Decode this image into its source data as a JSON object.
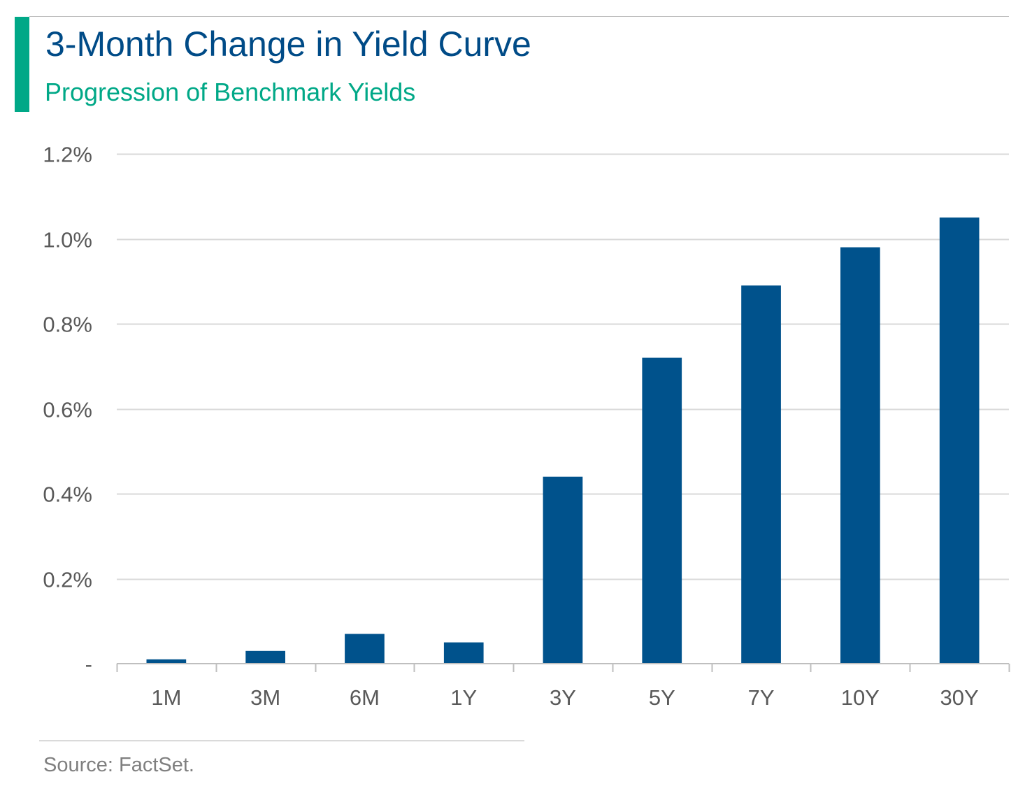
{
  "colors": {
    "accent": "#00a887",
    "title": "#004b87",
    "subtitle": "#00a887",
    "bar": "#00528c",
    "grid": "#d9d9d9",
    "axis": "#bfbfbf",
    "tick_text": "#595959"
  },
  "header": {
    "title": "3-Month Change in Yield Curve",
    "subtitle": "Progression of Benchmark Yields"
  },
  "footer": {
    "source": "Source: FactSet."
  },
  "chart_data": {
    "type": "bar",
    "title": "3-Month Change in Yield Curve",
    "subtitle": "Progression of Benchmark Yields",
    "xlabel": "",
    "ylabel": "",
    "categories": [
      "1M",
      "3M",
      "6M",
      "1Y",
      "3Y",
      "5Y",
      "7Y",
      "10Y",
      "30Y"
    ],
    "values": [
      0.01,
      0.03,
      0.07,
      0.05,
      0.44,
      0.72,
      0.89,
      0.98,
      1.05
    ],
    "value_unit": "%",
    "ylim": [
      0,
      1.2
    ],
    "yticks": [
      0,
      0.2,
      0.4,
      0.6,
      0.8,
      1.0,
      1.2
    ],
    "ytick_labels": [
      "-",
      "0.2%",
      "0.4%",
      "0.6%",
      "0.8%",
      "1.0%",
      "1.2%"
    ],
    "grid": true,
    "legend": "none"
  }
}
